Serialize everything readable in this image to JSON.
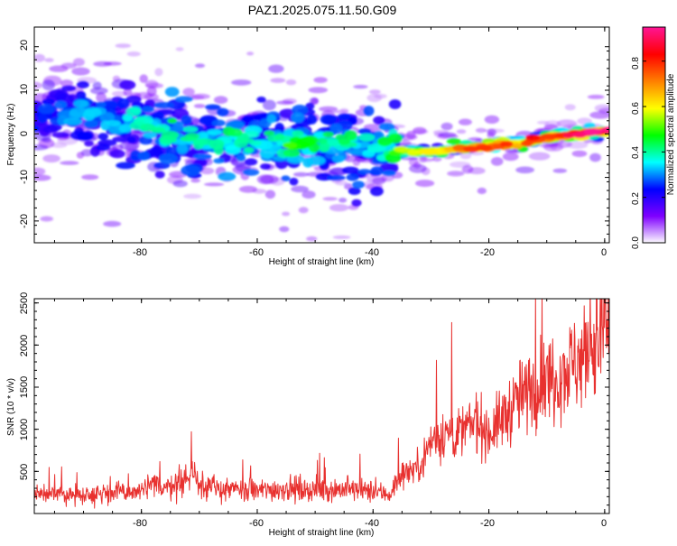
{
  "figure": {
    "title": "PAZ1.2025.075.11.50.G09"
  },
  "chart_data": [
    {
      "type": "heatmap",
      "xlabel": "Height of straight line (km)",
      "ylabel": "Frequency (Hz)",
      "xlim": [
        -98.5,
        0.8
      ],
      "ylim": [
        -25,
        24.5
      ],
      "xticks": [
        "-80",
        "-60",
        "-40",
        "-20",
        "0"
      ],
      "yticks": [
        "20",
        "10",
        "0",
        "-10",
        "-20"
      ],
      "grid": false,
      "ridge": {
        "heights": [
          -97,
          -90,
          -85,
          -80,
          -75,
          -70,
          -65,
          -60,
          -55,
          -50,
          -45,
          -40,
          -36,
          -30,
          -25,
          -20,
          -15,
          -10,
          -5,
          0
        ],
        "frequency": [
          4,
          4.5,
          3.5,
          1.5,
          0,
          -1.5,
          -2,
          -1.5,
          -1.8,
          -2.2,
          -2.3,
          -2.5,
          -3.8,
          -4,
          -3.5,
          -3,
          -2.2,
          -1,
          0,
          0.8
        ],
        "amplitude": [
          0.25,
          0.3,
          0.3,
          0.35,
          0.4,
          0.35,
          0.4,
          0.35,
          0.45,
          0.4,
          0.4,
          0.35,
          0.5,
          0.55,
          0.65,
          0.75,
          0.7,
          0.75,
          0.8,
          0.85
        ]
      },
      "colorbar": {
        "label": "Normalized spectral amplitude",
        "ticks": [
          "0.0",
          "0.2",
          "0.4",
          "0.6",
          "0.8"
        ],
        "range": [
          0,
          0.95
        ],
        "colors": [
          "#ffffff",
          "#7f00ff",
          "#0000ff",
          "#00ffff",
          "#00ff00",
          "#ffff00",
          "#ff8000",
          "#ff0000",
          "#ff1493"
        ]
      }
    },
    {
      "type": "line",
      "xlabel": "Height of straight line (km)",
      "ylabel": "SNR (10 * v/v)",
      "xlim": [
        -98.5,
        0.8
      ],
      "ylim": [
        0,
        2550
      ],
      "xticks": [
        "-80",
        "-60",
        "-40",
        "-20",
        "0"
      ],
      "yticks": [
        "500",
        "1000",
        "1500",
        "2000",
        "2500"
      ],
      "grid": false,
      "color": "#e8312f",
      "series": [
        {
          "x": [
            -98.5,
            -95,
            -90,
            -85,
            -80,
            -78,
            -75,
            -72,
            -71,
            -70,
            -68,
            -65,
            -60,
            -55,
            -50,
            -45,
            -40,
            -37,
            -35,
            -32,
            -30,
            -28,
            -25,
            -22,
            -20,
            -18,
            -15,
            -13,
            -10,
            -8,
            -5,
            -3,
            -1,
            0,
            0.8
          ],
          "y": [
            250,
            220,
            230,
            250,
            260,
            330,
            330,
            420,
            450,
            400,
            300,
            280,
            270,
            300,
            280,
            290,
            260,
            230,
            480,
            560,
            850,
            950,
            950,
            1100,
            950,
            1100,
            1350,
            1450,
            1600,
            1650,
            1800,
            1900,
            2050,
            2350,
            2050
          ]
        }
      ]
    }
  ]
}
